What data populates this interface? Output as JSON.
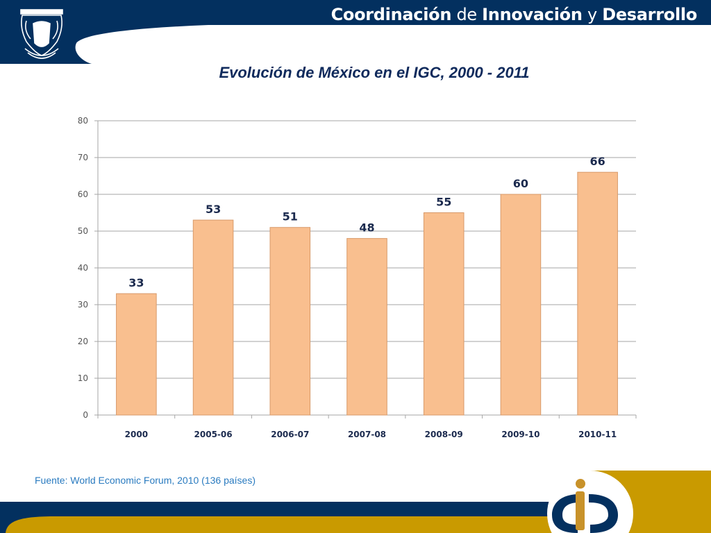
{
  "header": {
    "brand_parts": [
      {
        "text": "Coordinación",
        "weight": "bold"
      },
      {
        "text": " de ",
        "weight": "normal"
      },
      {
        "text": "Innovación",
        "weight": "bold"
      },
      {
        "text": " y ",
        "weight": "normal"
      },
      {
        "text": "Desarrollo",
        "weight": "bold"
      }
    ],
    "logo_left": "unam-crest-icon",
    "colors": {
      "navy": "#03305f",
      "gold": "#c99a00"
    }
  },
  "slide": {
    "title": "Evolución de México en el IGC, 2000 - 2011",
    "source": "Fuente: World Economic Forum, 2010 (136 países)"
  },
  "footer": {
    "logo": "cid-logo-icon"
  },
  "chart_data": {
    "type": "bar",
    "title": "Evolución de México en el IGC, 2000 - 2011",
    "xlabel": "",
    "ylabel": "",
    "categories": [
      "2000",
      "2005-06",
      "2006-07",
      "2007-08",
      "2008-09",
      "2009-10",
      "2010-11"
    ],
    "values": [
      33,
      53,
      51,
      48,
      55,
      60,
      66
    ],
    "data_labels": [
      "33",
      "53",
      "51",
      "48",
      "55",
      "60",
      "66"
    ],
    "ylim": [
      0,
      80
    ],
    "yticks": [
      0,
      10,
      20,
      30,
      40,
      50,
      60,
      70,
      80
    ],
    "grid": true,
    "legend": "none",
    "bar_color": "#f9bf8f",
    "bar_edge_color": "#d89a6a"
  }
}
